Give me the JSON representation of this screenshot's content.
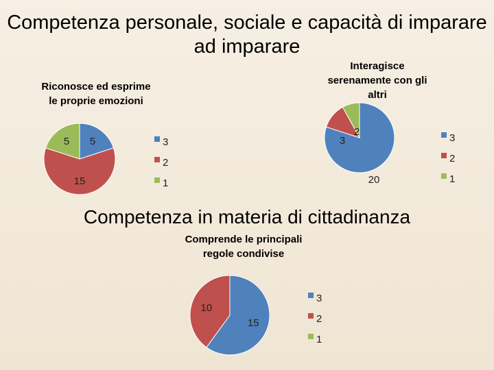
{
  "page": {
    "title_line1": "Competenza personale, sociale e capacità di imparare",
    "title_line2": "ad imparare",
    "section2_title": "Competenza in materia di cittadinanza"
  },
  "colors": {
    "3": "#4f81bd",
    "2": "#c0504d",
    "1": "#9bbb59"
  },
  "chart_data": [
    {
      "type": "pie",
      "title_lines": [
        "Riconosce ed esprime",
        "le proprie emozioni"
      ],
      "categories": [
        "3",
        "2",
        "1"
      ],
      "values": [
        5,
        15,
        5
      ],
      "legend": [
        "3",
        "2",
        "1"
      ],
      "legend_position": "right"
    },
    {
      "type": "pie",
      "title_lines": [
        "Interagisce",
        "serenamente con gli",
        "altri"
      ],
      "categories": [
        "3",
        "2",
        "1"
      ],
      "values": [
        20,
        3,
        2
      ],
      "legend": [
        "3",
        "2",
        "1"
      ],
      "legend_position": "right"
    },
    {
      "type": "pie",
      "title_lines": [
        "Comprende le principali",
        "regole condivise"
      ],
      "categories": [
        "3",
        "2",
        "1"
      ],
      "values": [
        15,
        10,
        0
      ],
      "legend": [
        "3",
        "2",
        "1"
      ],
      "legend_position": "right"
    }
  ]
}
